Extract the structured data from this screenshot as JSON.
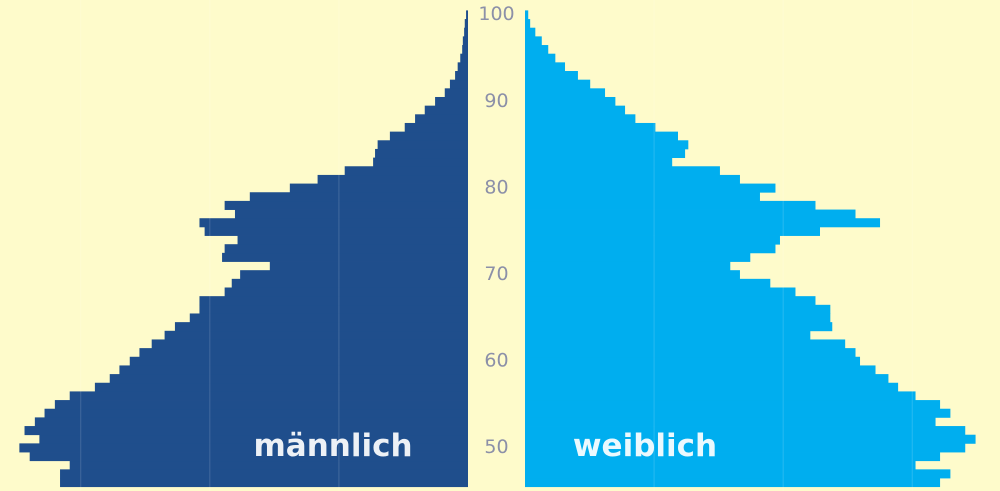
{
  "chart_data": {
    "type": "population-pyramid",
    "y": [
      46,
      47,
      48,
      49,
      50,
      51,
      52,
      53,
      54,
      55,
      56,
      57,
      58,
      59,
      60,
      61,
      62,
      63,
      64,
      65,
      66,
      67,
      68,
      69,
      70,
      71,
      72,
      73,
      74,
      75,
      76,
      77,
      78,
      79,
      80,
      81,
      82,
      83,
      84,
      85,
      86,
      87,
      88,
      89,
      90,
      91,
      92,
      93,
      94,
      95,
      96,
      97,
      98,
      99,
      100
    ],
    "ylim": [
      45,
      101.7
    ],
    "yticks": [
      50,
      60,
      70,
      80,
      90,
      100
    ],
    "xlim": [
      0,
      725
    ],
    "xticks": [
      200,
      400,
      600
    ],
    "grid": true,
    "series": [
      {
        "name": "männlich",
        "color": "#1f4e8c",
        "side": "left",
        "values": [
          632,
          632,
          617,
          679,
          695,
          664,
          687,
          671,
          656,
          640,
          617,
          578,
          555,
          540,
          524,
          509,
          490,
          470,
          454,
          431,
          416,
          416,
          377,
          366,
          353,
          307,
          381,
          377,
          357,
          408,
          416,
          361,
          377,
          338,
          276,
          233,
          191,
          147,
          144,
          140,
          121,
          98,
          82,
          67,
          51,
          36,
          28,
          20,
          16,
          12,
          9,
          8,
          6,
          5,
          3
        ]
      },
      {
        "name": "weiblich",
        "color": "#00aeef",
        "side": "right",
        "values": [
          643,
          659,
          605,
          643,
          682,
          698,
          682,
          636,
          659,
          643,
          605,
          578,
          563,
          543,
          519,
          512,
          496,
          442,
          476,
          473,
          473,
          450,
          419,
          380,
          333,
          318,
          349,
          388,
          395,
          457,
          550,
          512,
          450,
          364,
          388,
          333,
          302,
          228,
          248,
          253,
          237,
          202,
          171,
          155,
          140,
          124,
          101,
          82,
          62,
          47,
          36,
          26,
          16,
          8,
          5
        ]
      }
    ]
  }
}
